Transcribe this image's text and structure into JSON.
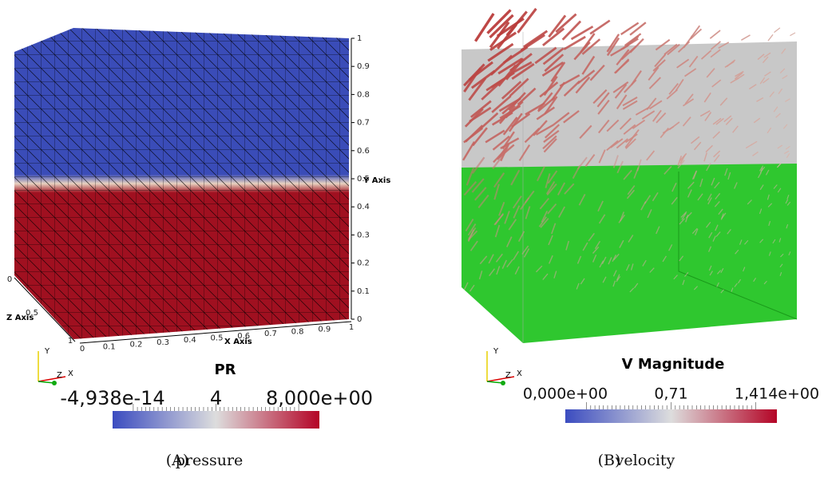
{
  "panels": [
    {
      "caption_label": "(A)",
      "caption": "pressure",
      "axes": {
        "y_title": "Y Axis",
        "x_title": "X Axis",
        "z_title": "Z Axis",
        "y_ticks": [
          "0",
          "0.1",
          "0.2",
          "0.3",
          "0.4",
          "0.5",
          "0.6",
          "0.7",
          "0.8",
          "0.9",
          "1"
        ],
        "x_ticks": [
          "0",
          "0.1",
          "0.2",
          "0.3",
          "0.4",
          "0.5",
          "0.6",
          "0.7",
          "0.8",
          "0.9",
          "1"
        ],
        "z_ticks": [
          "0",
          "0.5",
          "1"
        ]
      },
      "triad": {
        "y": "Y",
        "z": "Z",
        "x": "X"
      },
      "colorbar": {
        "title": "PR",
        "labels": [
          "-4,938e-14",
          "4",
          "8,000e+00"
        ]
      }
    },
    {
      "caption_label": "(B)",
      "caption": "velocity",
      "triad": {
        "y": "Y",
        "z": "Z",
        "x": "X"
      },
      "colorbar": {
        "title": "V Magnitude",
        "labels": [
          "0,000e+00",
          "0,71",
          "1,414e+00"
        ]
      }
    }
  ]
}
